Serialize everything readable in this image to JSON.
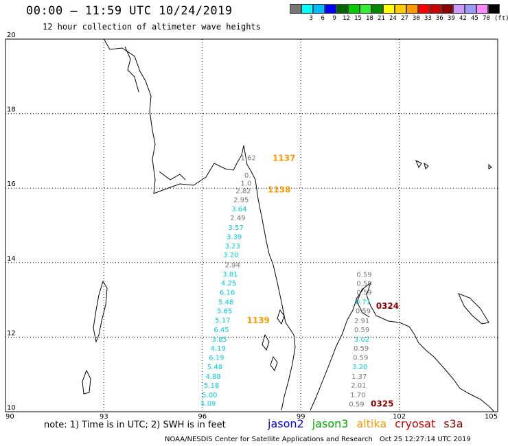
{
  "header": {
    "title": "00:00 – 11:59 UTC 10/24/2019",
    "subtitle": "12 hour collection of altimeter wave heights"
  },
  "legend": {
    "unit": "(ft)",
    "items": [
      {
        "label": "",
        "color": "#777777"
      },
      {
        "label": "3",
        "color": "#00ffff"
      },
      {
        "label": "6",
        "color": "#00bbff"
      },
      {
        "label": "9",
        "color": "#0000ff"
      },
      {
        "label": "12",
        "color": "#006400"
      },
      {
        "label": "15",
        "color": "#00cc00"
      },
      {
        "label": "18",
        "color": "#33ee33"
      },
      {
        "label": "21",
        "color": "#008800"
      },
      {
        "label": "24",
        "color": "#ffff00"
      },
      {
        "label": "27",
        "color": "#ffcc00"
      },
      {
        "label": "30",
        "color": "#ff9900"
      },
      {
        "label": "33",
        "color": "#ff0000"
      },
      {
        "label": "36",
        "color": "#cc0000"
      },
      {
        "label": "39",
        "color": "#8b0000"
      },
      {
        "label": "42",
        "color": "#cc99ff"
      },
      {
        "label": "45",
        "color": "#9999ff"
      },
      {
        "label": "70",
        "color": "#ff88ff"
      },
      {
        "label": "",
        "color": "#000000"
      }
    ]
  },
  "axes": {
    "lat_labels": [
      "20",
      "18",
      "16",
      "14",
      "12",
      "10"
    ],
    "lon_labels": [
      "90",
      "93",
      "96",
      "99",
      "102",
      "105"
    ]
  },
  "tracks": [
    {
      "id": "track-1137",
      "pass": "1137",
      "pass_color": "#ff9900",
      "obs": [
        {
          "lon": 97.4,
          "lat": 16.75,
          "v": "1.62",
          "color": "#777777"
        }
      ]
    },
    {
      "id": "track-1138",
      "pass": "1138",
      "pass_color": "#ff9900",
      "obs": [
        {
          "lon": 97.38,
          "lat": 16.28,
          "v": "0.",
          "color": "#777777"
        },
        {
          "lon": 97.33,
          "lat": 16.07,
          "v": "1.0",
          "color": "#777777"
        },
        {
          "lon": 97.25,
          "lat": 15.87,
          "v": "2.82",
          "color": "#777777"
        },
        {
          "lon": 97.18,
          "lat": 15.63,
          "v": "2.95",
          "color": "#777777"
        },
        {
          "lon": 97.12,
          "lat": 15.38,
          "v": "3.64",
          "color": "#00ccdd"
        },
        {
          "lon": 97.08,
          "lat": 15.14,
          "v": "2.49",
          "color": "#777777"
        },
        {
          "lon": 97.02,
          "lat": 14.88,
          "v": "3.57",
          "color": "#00ccdd"
        },
        {
          "lon": 96.97,
          "lat": 14.63,
          "v": "3.39",
          "color": "#00ccdd"
        },
        {
          "lon": 96.92,
          "lat": 14.38,
          "v": "3.23",
          "color": "#00ccdd"
        },
        {
          "lon": 96.87,
          "lat": 14.14,
          "v": "3.20",
          "color": "#00ccdd"
        }
      ]
    },
    {
      "id": "track-1139",
      "pass": "1139",
      "pass_color": "#ff9900",
      "obs": [
        {
          "lon": 96.92,
          "lat": 13.88,
          "v": "2.94",
          "color": "#777777"
        },
        {
          "lon": 96.85,
          "lat": 13.63,
          "v": "3.81",
          "color": "#00ccdd"
        },
        {
          "lon": 96.8,
          "lat": 13.39,
          "v": "4.25",
          "color": "#00ccdd"
        },
        {
          "lon": 96.76,
          "lat": 13.14,
          "v": "6.16",
          "color": "#00ccdd"
        },
        {
          "lon": 96.72,
          "lat": 12.88,
          "v": "5.48",
          "color": "#00ccdd"
        },
        {
          "lon": 96.68,
          "lat": 12.64,
          "v": "5.65",
          "color": "#00ccdd"
        },
        {
          "lon": 96.62,
          "lat": 12.39,
          "v": "5.17",
          "color": "#00ccdd"
        },
        {
          "lon": 96.58,
          "lat": 12.14,
          "v": "6.45",
          "color": "#00ccdd"
        },
        {
          "lon": 96.52,
          "lat": 11.88,
          "v": "3.85",
          "color": "#00ccdd"
        },
        {
          "lon": 96.48,
          "lat": 11.64,
          "v": "4.19",
          "color": "#00ccdd"
        },
        {
          "lon": 96.43,
          "lat": 11.39,
          "v": "6.19",
          "color": "#00ccdd"
        },
        {
          "lon": 96.38,
          "lat": 11.14,
          "v": "5.48",
          "color": "#00ccdd"
        },
        {
          "lon": 96.33,
          "lat": 10.88,
          "v": "4.88",
          "color": "#00ccdd"
        },
        {
          "lon": 96.28,
          "lat": 10.64,
          "v": "5.18",
          "color": "#00ccdd"
        },
        {
          "lon": 96.22,
          "lat": 10.39,
          "v": "5.00",
          "color": "#00ccdd"
        },
        {
          "lon": 96.18,
          "lat": 10.16,
          "v": "5.09",
          "color": "#00ccdd"
        }
      ]
    },
    {
      "id": "track-0324",
      "pass": "0324",
      "pass_color": "#8b0000",
      "obs": [
        {
          "lon": 100.93,
          "lat": 13.62,
          "v": "0.59",
          "color": "#777777"
        },
        {
          "lon": 100.93,
          "lat": 13.38,
          "v": "0.59",
          "color": "#777777"
        },
        {
          "lon": 100.93,
          "lat": 13.14,
          "v": "0.59",
          "color": "#777777"
        },
        {
          "lon": 100.9,
          "lat": 12.88,
          "v": "0.71",
          "color": "#00ccdd"
        },
        {
          "lon": 100.9,
          "lat": 12.64,
          "v": "0.59",
          "color": "#777777"
        }
      ]
    },
    {
      "id": "track-0325",
      "pass": "0325",
      "pass_color": "#8b0000",
      "obs": [
        {
          "lon": 100.86,
          "lat": 12.38,
          "v": "2.91",
          "color": "#777777"
        },
        {
          "lon": 100.86,
          "lat": 12.14,
          "v": "0.59",
          "color": "#777777"
        },
        {
          "lon": 100.86,
          "lat": 11.88,
          "v": "3.02",
          "color": "#00ccdd"
        },
        {
          "lon": 100.84,
          "lat": 11.64,
          "v": "0.59",
          "color": "#777777"
        },
        {
          "lon": 100.82,
          "lat": 11.39,
          "v": "0.59",
          "color": "#777777"
        },
        {
          "lon": 100.8,
          "lat": 11.14,
          "v": "3.20",
          "color": "#00ccdd"
        },
        {
          "lon": 100.78,
          "lat": 10.88,
          "v": "1.37",
          "color": "#777777"
        },
        {
          "lon": 100.76,
          "lat": 10.64,
          "v": "2.01",
          "color": "#777777"
        },
        {
          "lon": 100.74,
          "lat": 10.39,
          "v": "1.70",
          "color": "#777777"
        },
        {
          "lon": 100.7,
          "lat": 10.14,
          "v": "0.59",
          "color": "#777777"
        }
      ]
    }
  ],
  "note": "note: 1) Time is in UTC; 2) SWH is in feet",
  "satellites": [
    {
      "name": "jason2",
      "color": "#0000ff"
    },
    {
      "name": "jason3",
      "color": "#00aa00"
    },
    {
      "name": "altika",
      "color": "#ff9900"
    },
    {
      "name": "cryosat",
      "color": "#cc0000"
    },
    {
      "name": "s3a",
      "color": "#8b0000"
    }
  ],
  "footer": {
    "agency": "NOAA/NESDIS Center for Satellite Applications and Research",
    "timestamp": "Oct 25 12:27:14 UTC 2019"
  }
}
